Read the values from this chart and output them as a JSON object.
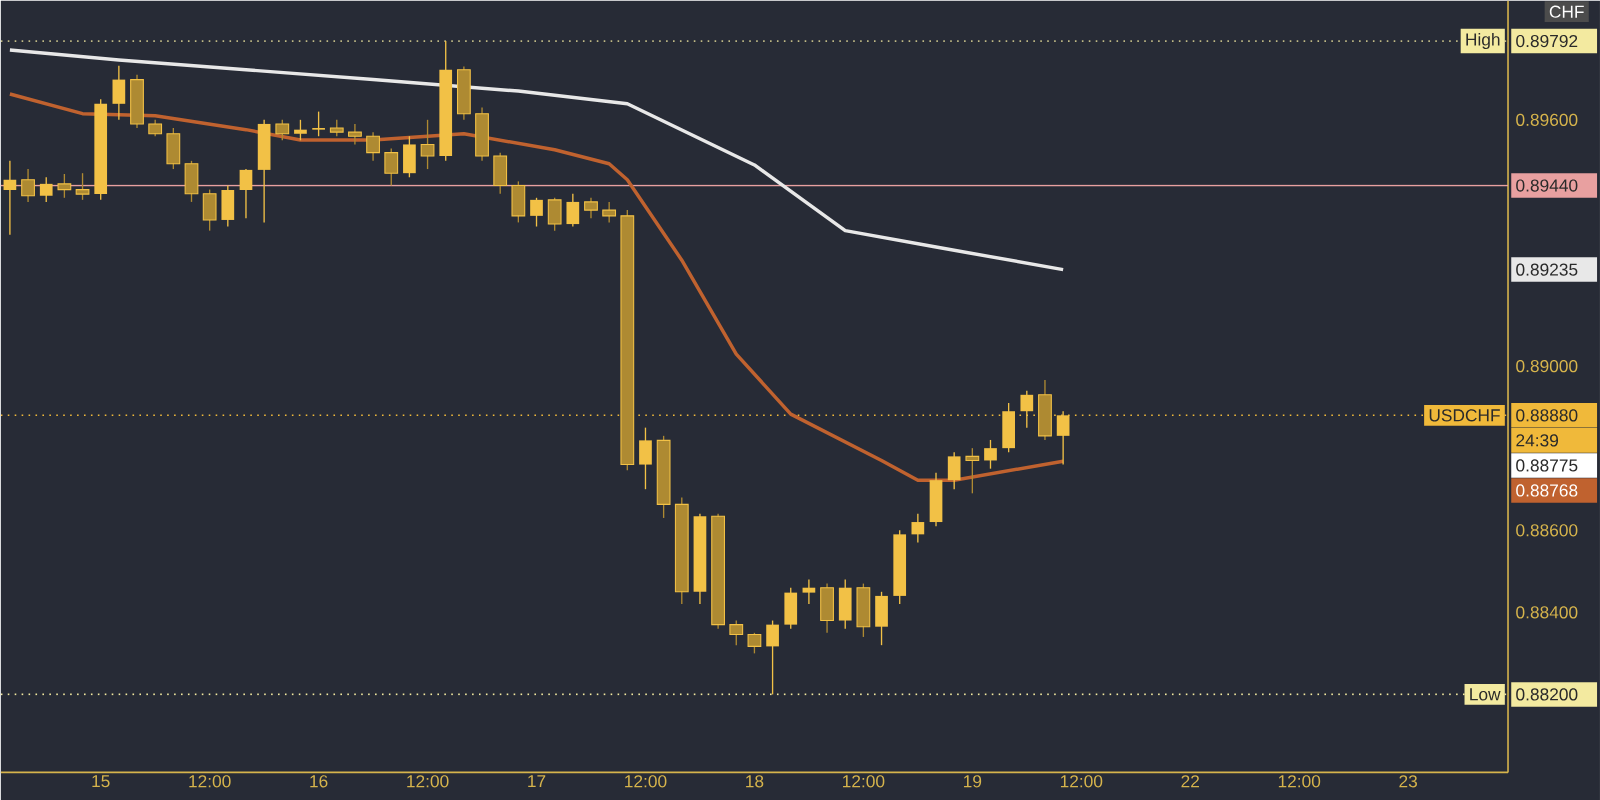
{
  "chart_data": {
    "type": "candlestick",
    "color": "#f2c146",
    "categories": [
      null,
      null,
      null,
      null,
      null,
      "15",
      null,
      null,
      null,
      null,
      null,
      "12:00",
      null,
      null,
      null,
      null,
      null,
      "16",
      null,
      null,
      null,
      null,
      null,
      "12:00",
      null,
      null,
      null,
      null,
      null,
      "17",
      null,
      null,
      null,
      null,
      null,
      "12:00",
      null,
      null,
      null,
      null,
      null,
      "18",
      null,
      null,
      null,
      null,
      null,
      "12:00",
      null,
      null,
      null,
      null,
      null,
      "19",
      null,
      null,
      null,
      null,
      null,
      "12:00",
      null,
      null,
      null,
      null,
      null,
      "22",
      null,
      null,
      null,
      null,
      null,
      "12:00",
      null,
      null,
      null,
      null,
      null,
      "23",
      null,
      null,
      null,
      null,
      null
    ],
    "ohlc": [
      [
        0.89429,
        0.895,
        0.8932,
        0.89454
      ],
      [
        0.89454,
        0.8948,
        0.894,
        0.89415
      ],
      [
        0.89415,
        0.8946,
        0.894,
        0.89444
      ],
      [
        0.89444,
        0.89468,
        0.8941,
        0.8943
      ],
      [
        0.8943,
        0.8947,
        0.89405,
        0.89419
      ],
      [
        0.89419,
        0.8965,
        0.89405,
        0.89639
      ],
      [
        0.89639,
        0.89732,
        0.896,
        0.89698
      ],
      [
        0.89698,
        0.8971,
        0.8958,
        0.8959
      ],
      [
        0.8959,
        0.896,
        0.8956,
        0.89566
      ],
      [
        0.89566,
        0.8958,
        0.8948,
        0.89493
      ],
      [
        0.89493,
        0.895,
        0.894,
        0.8942
      ],
      [
        0.8942,
        0.8943,
        0.8933,
        0.89356
      ],
      [
        0.89356,
        0.8944,
        0.8934,
        0.89429
      ],
      [
        0.89429,
        0.8948,
        0.8936,
        0.89478
      ],
      [
        0.89478,
        0.896,
        0.8935,
        0.8959
      ],
      [
        0.8959,
        0.896,
        0.8955,
        0.89566
      ],
      [
        0.89566,
        0.896,
        0.8955,
        0.89576
      ],
      [
        0.89576,
        0.8962,
        0.8956,
        0.8958
      ],
      [
        0.8958,
        0.896,
        0.8956,
        0.8957
      ],
      [
        0.8957,
        0.8959,
        0.8954,
        0.8956
      ],
      [
        0.8956,
        0.8957,
        0.895,
        0.8952
      ],
      [
        0.8952,
        0.8953,
        0.8944,
        0.8947
      ],
      [
        0.8947,
        0.8956,
        0.8946,
        0.8954
      ],
      [
        0.8954,
        0.896,
        0.8948,
        0.89512
      ],
      [
        0.89512,
        0.89792,
        0.895,
        0.89722
      ],
      [
        0.89722,
        0.8973,
        0.896,
        0.89615
      ],
      [
        0.89615,
        0.8963,
        0.895,
        0.89512
      ],
      [
        0.89512,
        0.8952,
        0.8942,
        0.8944
      ],
      [
        0.8944,
        0.8945,
        0.8935,
        0.89366
      ],
      [
        0.89366,
        0.8941,
        0.8934,
        0.89405
      ],
      [
        0.89405,
        0.8941,
        0.8933,
        0.89346
      ],
      [
        0.89346,
        0.8942,
        0.8934,
        0.894
      ],
      [
        0.894,
        0.8941,
        0.8936,
        0.8938
      ],
      [
        0.8938,
        0.894,
        0.8935,
        0.89366
      ],
      [
        0.89366,
        0.8938,
        0.88746,
        0.8876
      ],
      [
        0.8876,
        0.8885,
        0.887,
        0.88819
      ],
      [
        0.88819,
        0.8883,
        0.8863,
        0.88663
      ],
      [
        0.88663,
        0.8868,
        0.8842,
        0.8845
      ],
      [
        0.8845,
        0.8864,
        0.8842,
        0.88634
      ],
      [
        0.88634,
        0.8864,
        0.8836,
        0.8837
      ],
      [
        0.8837,
        0.8838,
        0.8832,
        0.88346
      ],
      [
        0.88346,
        0.8835,
        0.883,
        0.88317
      ],
      [
        0.88317,
        0.8838,
        0.882,
        0.8837
      ],
      [
        0.8837,
        0.8846,
        0.8836,
        0.88448
      ],
      [
        0.88448,
        0.8848,
        0.8842,
        0.8846
      ],
      [
        0.8846,
        0.8847,
        0.8835,
        0.8838
      ],
      [
        0.8838,
        0.8848,
        0.8836,
        0.8846
      ],
      [
        0.8846,
        0.8847,
        0.8834,
        0.88365
      ],
      [
        0.88365,
        0.8845,
        0.8832,
        0.8844
      ],
      [
        0.8844,
        0.886,
        0.8842,
        0.8859
      ],
      [
        0.8859,
        0.8864,
        0.8857,
        0.8862
      ],
      [
        0.8862,
        0.8874,
        0.8861,
        0.88722
      ],
      [
        0.88722,
        0.8879,
        0.887,
        0.8878
      ],
      [
        0.8878,
        0.888,
        0.8869,
        0.8877
      ],
      [
        0.8877,
        0.8882,
        0.8875,
        0.888
      ],
      [
        0.888,
        0.8891,
        0.8879,
        0.8889
      ],
      [
        0.8889,
        0.8894,
        0.8885,
        0.8893
      ],
      [
        0.8893,
        0.88966,
        0.8882,
        0.8883
      ],
      [
        0.8883,
        0.8889,
        0.8876,
        0.8888
      ],
      null,
      null,
      null,
      null,
      null,
      null,
      null,
      null,
      null,
      null,
      null,
      null,
      null,
      null,
      null,
      null,
      null,
      null,
      null,
      null,
      null,
      null,
      null,
      null
    ],
    "series": [
      {
        "type": "line",
        "color": "#e8e8e8",
        "values": [
          0.8977,
          null,
          null,
          null,
          null,
          null,
          0.89746,
          null,
          null,
          null,
          null,
          null,
          null,
          0.89722,
          null,
          null,
          null,
          null,
          null,
          null,
          0.89698,
          null,
          null,
          null,
          null,
          null,
          null,
          null,
          0.8967,
          null,
          null,
          null,
          null,
          null,
          0.89639,
          null,
          null,
          null,
          null,
          null,
          null,
          0.8949,
          null,
          null,
          null,
          null,
          0.8933,
          null,
          null,
          null,
          null,
          0.8929,
          null,
          null,
          null,
          null,
          null,
          null,
          0.89235,
          null,
          null,
          null,
          null,
          null,
          null,
          null,
          null,
          null,
          null,
          null,
          null,
          null,
          null,
          null,
          null,
          null,
          null,
          null,
          null,
          null,
          null,
          null,
          null
        ]
      },
      {
        "type": "line",
        "color": "#c0622f",
        "values": [
          0.89663,
          null,
          null,
          null,
          0.89615,
          null,
          null,
          null,
          0.8961,
          null,
          null,
          null,
          null,
          0.89576,
          null,
          null,
          0.89551,
          null,
          null,
          null,
          0.89551,
          null,
          null,
          null,
          null,
          0.89566,
          null,
          null,
          null,
          null,
          0.89527,
          null,
          null,
          0.89493,
          0.89454,
          null,
          null,
          0.89258,
          null,
          null,
          0.89029,
          null,
          null,
          0.88883,
          null,
          null,
          null,
          null,
          0.8877,
          null,
          0.88722,
          null,
          0.88722,
          null,
          null,
          null,
          null,
          null,
          0.88768,
          null,
          null,
          null,
          null,
          null,
          null,
          null,
          null,
          null,
          null,
          null,
          null,
          null,
          null,
          null,
          null,
          null,
          null,
          null,
          null,
          null,
          null,
          null,
          null
        ]
      }
    ],
    "ylim": [
      0.8801,
      0.8989
    ],
    "yticks": [
      {
        "value": 0.882,
        "label": "0.88200"
      },
      {
        "value": 0.884,
        "label": "0.88400"
      },
      {
        "value": 0.886,
        "label": "0.88600"
      },
      {
        "value": 0.8888,
        "label": "0.88880"
      },
      {
        "value": 0.89,
        "label": "0.89000"
      },
      {
        "value": 0.89235,
        "label": "0.89235"
      },
      {
        "value": 0.8944,
        "label": "0.89440"
      },
      {
        "value": 0.896,
        "label": "0.89600"
      },
      {
        "value": 0.89792,
        "label": "0.89792"
      }
    ],
    "ref_lines": [
      {
        "axis": "y",
        "value": 0.89792,
        "label": "High",
        "color": "#f3eaa0",
        "line_style": "dotted"
      },
      {
        "axis": "y",
        "value": 0.882,
        "label": "Low",
        "color": "#f3eaa0",
        "line_style": "dotted"
      },
      {
        "axis": "y",
        "value": 0.8888,
        "label": "USDCHF",
        "color": "#f0b93a",
        "line_style": "dotted"
      },
      {
        "axis": "y",
        "value": 0.8944,
        "color": "#e8a0a0",
        "line_style": "solid"
      }
    ],
    "annotations": [
      "24:39",
      "0.88775",
      "0.88768",
      "CHF"
    ]
  }
}
